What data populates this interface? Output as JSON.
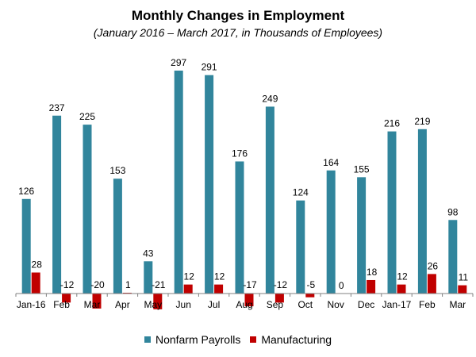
{
  "chart_data": {
    "type": "bar",
    "title": "Monthly Changes in Employment",
    "subtitle": "(January 2016 – March 2017, in Thousands of Employees)",
    "categories": [
      "Jan-16",
      "Feb",
      "Mar",
      "Apr",
      "May",
      "Jun",
      "Jul",
      "Aug",
      "Sep",
      "Oct",
      "Nov",
      "Dec",
      "Jan-17",
      "Feb",
      "Mar"
    ],
    "series": [
      {
        "name": "Nonfarm Payrolls",
        "color": "#31859C",
        "values": [
          126,
          237,
          225,
          153,
          43,
          297,
          291,
          176,
          249,
          124,
          164,
          155,
          216,
          219,
          98
        ]
      },
      {
        "name": "Manufacturing",
        "color": "#C00000",
        "values": [
          28,
          -12,
          -20,
          1,
          -21,
          12,
          12,
          -17,
          -12,
          -5,
          0,
          18,
          12,
          26,
          11
        ]
      }
    ],
    "data_labels": true,
    "legend_position": "bottom",
    "grid": false
  }
}
